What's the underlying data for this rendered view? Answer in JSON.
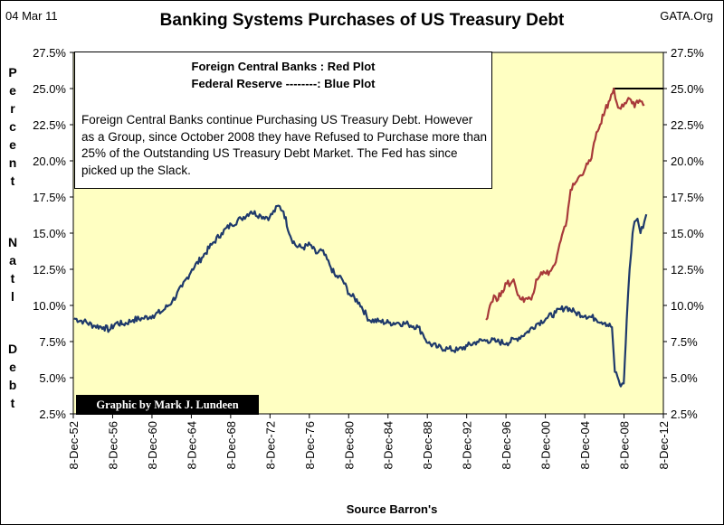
{
  "header": {
    "date": "04 Mar 11",
    "title": "Banking Systems Purchases of US Treasury Debt",
    "site": "GATA.Org"
  },
  "y_axis_letters": [
    "P",
    "e",
    "r",
    "c",
    "e",
    "n",
    "t",
    "N",
    "a",
    "t",
    "l",
    "D",
    "e",
    "b",
    "t"
  ],
  "legend": {
    "red_label": "Foreign Central Banks : Red Plot",
    "blue_label": "Federal Reserve  --------: Blue Plot",
    "note": "Foreign Central Banks continue Purchasing US Treasury Debt. However as a Group, since October 2008 they have Refused to Purchase more than 25% of the Outstanding US Treasury Debt Market.  The Fed has since picked up the Slack."
  },
  "credit": "Graphic by Mark J. Lundeen",
  "source": "Source Barron's",
  "colors": {
    "plot_bg": "#ffffc2",
    "red": "#a83a3a",
    "blue": "#1f3a6b"
  },
  "chart_data": {
    "type": "line",
    "title": "Banking Systems Purchases of US Treasury Debt",
    "ylabel": "Percent Natl Debt",
    "xlabel": "Source Barron's",
    "x_range": [
      1952.93,
      2012.93
    ],
    "ylim": [
      2.5,
      27.5
    ],
    "y_ticks": [
      2.5,
      5.0,
      7.5,
      10.0,
      12.5,
      15.0,
      17.5,
      20.0,
      22.5,
      25.0,
      27.5
    ],
    "y_tick_labels": [
      "2.5%",
      "5.0%",
      "7.5%",
      "10.0%",
      "12.5%",
      "15.0%",
      "17.5%",
      "20.0%",
      "22.5%",
      "25.0%",
      "27.5%"
    ],
    "x_ticks": [
      1952.93,
      1956.93,
      1960.93,
      1964.93,
      1968.93,
      1972.93,
      1976.93,
      1980.93,
      1984.93,
      1988.93,
      1992.93,
      1996.93,
      2000.93,
      2004.93,
      2008.93,
      2012.93
    ],
    "x_tick_labels": [
      "8-Dec-52",
      "8-Dec-56",
      "8-Dec-60",
      "8-Dec-64",
      "8-Dec-68",
      "8-Dec-72",
      "8-Dec-76",
      "8-Dec-80",
      "8-Dec-84",
      "8-Dec-88",
      "8-Dec-92",
      "8-Dec-96",
      "8-Dec-00",
      "8-Dec-04",
      "8-Dec-08",
      "8-Dec-12"
    ],
    "reference_line": {
      "y": 25.0,
      "x_start": 2007.8,
      "x_end": 2012.93
    },
    "series": [
      {
        "name": "Federal Reserve",
        "color": "blue",
        "points": [
          [
            1953.0,
            9.1
          ],
          [
            1954.0,
            8.9
          ],
          [
            1955.0,
            8.6
          ],
          [
            1956.0,
            8.5
          ],
          [
            1956.6,
            8.3
          ],
          [
            1957.3,
            8.8
          ],
          [
            1958.0,
            8.7
          ],
          [
            1959.0,
            9.0
          ],
          [
            1960.0,
            9.1
          ],
          [
            1961.0,
            9.3
          ],
          [
            1962.0,
            9.6
          ],
          [
            1963.0,
            10.3
          ],
          [
            1964.0,
            11.3
          ],
          [
            1965.0,
            12.5
          ],
          [
            1966.0,
            13.3
          ],
          [
            1967.0,
            14.2
          ],
          [
            1968.0,
            15.0
          ],
          [
            1969.0,
            15.6
          ],
          [
            1970.0,
            16.0
          ],
          [
            1971.0,
            16.5
          ],
          [
            1972.0,
            16.2
          ],
          [
            1972.9,
            16.1
          ],
          [
            1973.8,
            16.9
          ],
          [
            1974.3,
            16.5
          ],
          [
            1975.0,
            14.8
          ],
          [
            1975.6,
            14.1
          ],
          [
            1976.3,
            14.0
          ],
          [
            1977.0,
            14.2
          ],
          [
            1977.6,
            13.6
          ],
          [
            1978.2,
            13.8
          ],
          [
            1979.0,
            12.8
          ],
          [
            1979.6,
            12.0
          ],
          [
            1980.2,
            11.9
          ],
          [
            1981.0,
            10.8
          ],
          [
            1982.0,
            10.2
          ],
          [
            1983.0,
            9.0
          ],
          [
            1984.0,
            8.9
          ],
          [
            1985.0,
            8.8
          ],
          [
            1986.0,
            8.8
          ],
          [
            1987.0,
            8.7
          ],
          [
            1988.0,
            8.5
          ],
          [
            1988.5,
            8.0
          ],
          [
            1989.0,
            7.4
          ],
          [
            1990.0,
            7.1
          ],
          [
            1991.0,
            7.0
          ],
          [
            1992.0,
            6.9
          ],
          [
            1993.0,
            7.2
          ],
          [
            1994.0,
            7.5
          ],
          [
            1995.0,
            7.6
          ],
          [
            1996.0,
            7.5
          ],
          [
            1997.0,
            7.4
          ],
          [
            1998.0,
            7.7
          ],
          [
            1999.0,
            8.1
          ],
          [
            2000.0,
            8.7
          ],
          [
            2001.0,
            9.1
          ],
          [
            2002.0,
            9.5
          ],
          [
            2003.0,
            9.9
          ],
          [
            2004.0,
            9.5
          ],
          [
            2005.0,
            9.3
          ],
          [
            2006.0,
            9.1
          ],
          [
            2007.0,
            8.8
          ],
          [
            2007.7,
            8.5
          ],
          [
            2008.0,
            5.4
          ],
          [
            2008.4,
            4.8
          ],
          [
            2008.6,
            4.4
          ],
          [
            2008.9,
            4.6
          ],
          [
            2009.0,
            6.0
          ],
          [
            2009.2,
            9.0
          ],
          [
            2009.5,
            12.5
          ],
          [
            2009.8,
            15.0
          ],
          [
            2010.0,
            15.8
          ],
          [
            2010.3,
            16.0
          ],
          [
            2010.6,
            15.0
          ],
          [
            2011.0,
            15.8
          ],
          [
            2011.2,
            16.3
          ]
        ]
      },
      {
        "name": "Foreign Central Banks",
        "color": "red",
        "points": [
          [
            1994.9,
            9.0
          ],
          [
            1995.3,
            10.0
          ],
          [
            1995.7,
            10.7
          ],
          [
            1996.0,
            10.3
          ],
          [
            1996.5,
            11.0
          ],
          [
            1997.0,
            11.5
          ],
          [
            1997.4,
            11.5
          ],
          [
            1997.7,
            11.8
          ],
          [
            1998.0,
            11.0
          ],
          [
            1998.5,
            10.4
          ],
          [
            1999.0,
            10.5
          ],
          [
            1999.5,
            10.4
          ],
          [
            2000.0,
            11.8
          ],
          [
            2000.5,
            12.3
          ],
          [
            2001.0,
            12.2
          ],
          [
            2001.5,
            12.4
          ],
          [
            2002.0,
            13.0
          ],
          [
            2002.5,
            14.5
          ],
          [
            2003.0,
            15.5
          ],
          [
            2003.5,
            18.0
          ],
          [
            2004.0,
            18.5
          ],
          [
            2004.5,
            19.0
          ],
          [
            2005.0,
            19.5
          ],
          [
            2005.5,
            20.0
          ],
          [
            2006.0,
            21.5
          ],
          [
            2006.5,
            22.5
          ],
          [
            2007.0,
            23.5
          ],
          [
            2007.5,
            24.2
          ],
          [
            2007.9,
            25.0
          ],
          [
            2008.2,
            24.0
          ],
          [
            2008.6,
            23.6
          ],
          [
            2009.0,
            24.0
          ],
          [
            2009.5,
            24.3
          ],
          [
            2010.0,
            23.7
          ],
          [
            2010.5,
            24.2
          ],
          [
            2011.0,
            23.9
          ]
        ]
      }
    ]
  }
}
